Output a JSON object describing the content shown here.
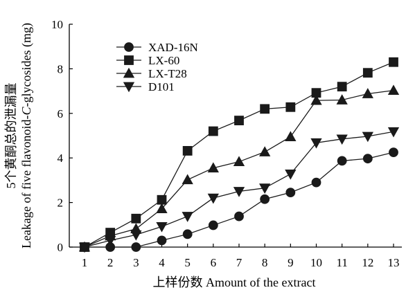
{
  "chart_data": {
    "type": "line",
    "xlabel": "上样份数 Amount of the extract",
    "ylabel_cn": "5个黄酮总的泄漏量",
    "ylabel_en_prefix": "Leakage of five flavonoid-",
    "ylabel_en_italic": "C",
    "ylabel_en_suffix": "-glycosides (mg)",
    "x": [
      1,
      2,
      3,
      4,
      5,
      6,
      7,
      8,
      9,
      10,
      11,
      12,
      13
    ],
    "xlim": [
      1,
      13
    ],
    "ylim": [
      0,
      10
    ],
    "yticks": [
      0,
      2,
      4,
      6,
      8,
      10
    ],
    "grid": false,
    "legend_position": "top-left",
    "series": [
      {
        "name": "XAD-16N",
        "marker": "circle",
        "values": [
          0,
          0,
          0,
          0.3,
          0.58,
          0.98,
          1.38,
          2.15,
          2.45,
          2.9,
          3.87,
          3.97,
          4.25
        ]
      },
      {
        "name": "LX-60",
        "marker": "square",
        "values": [
          0,
          0.65,
          1.28,
          2.12,
          4.32,
          5.2,
          5.68,
          6.2,
          6.28,
          6.92,
          7.2,
          7.82,
          8.3
        ]
      },
      {
        "name": "LX-T28",
        "marker": "triangle-up",
        "values": [
          0,
          0.5,
          0.82,
          1.72,
          3.02,
          3.55,
          3.83,
          4.27,
          4.95,
          6.58,
          6.6,
          6.88,
          7.03
        ]
      },
      {
        "name": "D101",
        "marker": "triangle-down",
        "values": [
          0,
          0.3,
          0.55,
          0.92,
          1.38,
          2.2,
          2.5,
          2.65,
          3.28,
          4.68,
          4.85,
          4.97,
          5.18
        ]
      }
    ]
  }
}
